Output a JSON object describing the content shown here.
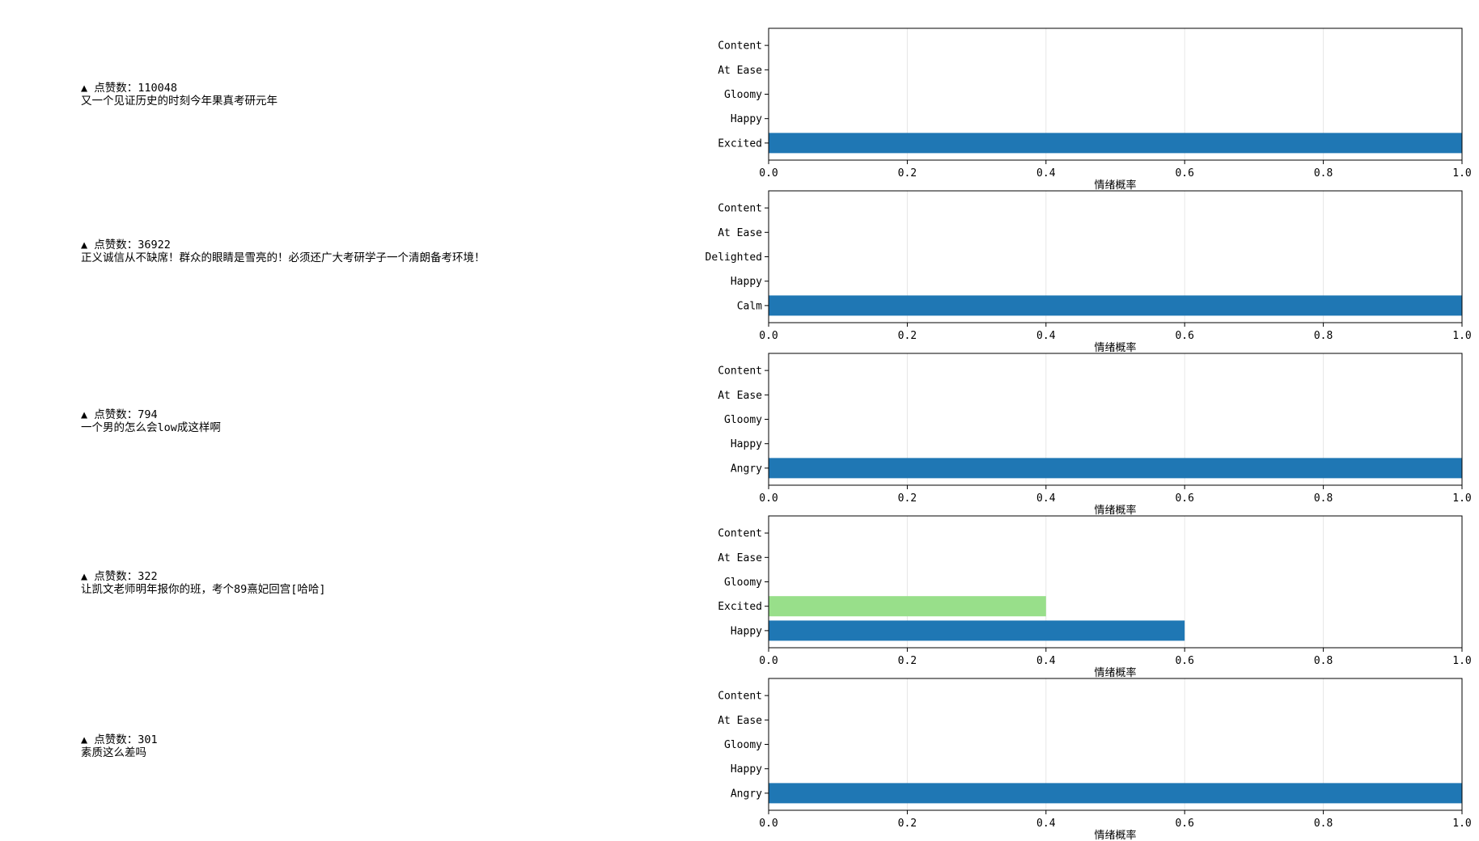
{
  "comments": [
    {
      "likes": "▲ 点赞数：110048",
      "text": "又一个见证历史的时刻今年果真考研元年"
    },
    {
      "likes": "▲ 点赞数：36922",
      "text": "正义诚信从不缺席！群众的眼睛是雪亮的！必须还广大考研学子一个清朗备考环境！"
    },
    {
      "likes": "▲ 点赞数：794",
      "text": "一个男的怎么会low成这样啊"
    },
    {
      "likes": "▲ 点赞数：322",
      "text": "让凯文老师明年报你的班，考个89熹妃回宫[哈哈]"
    },
    {
      "likes": "▲ 点赞数：301",
      "text": "素质这么差吗"
    }
  ],
  "colors": {
    "primary": "#1f77b4",
    "secondary": "#98df8a",
    "grid": "#e6e6e6",
    "axis": "#000000"
  },
  "chart_data": [
    {
      "type": "bar",
      "orientation": "horizontal",
      "categories": [
        "Excited",
        "Happy",
        "Gloomy",
        "At Ease",
        "Content"
      ],
      "values": [
        1.0,
        0,
        0,
        0,
        0
      ],
      "xlabel": "情绪概率",
      "xlim": [
        0,
        1.0
      ],
      "xticks": [
        "0.0",
        "0.2",
        "0.4",
        "0.6",
        "0.8",
        "1.0"
      ],
      "grid": "vertical"
    },
    {
      "type": "bar",
      "orientation": "horizontal",
      "categories": [
        "Calm",
        "Happy",
        "Delighted",
        "At Ease",
        "Content"
      ],
      "values": [
        1.0,
        0,
        0,
        0,
        0
      ],
      "xlabel": "情绪概率",
      "xlim": [
        0,
        1.0
      ],
      "xticks": [
        "0.0",
        "0.2",
        "0.4",
        "0.6",
        "0.8",
        "1.0"
      ],
      "grid": "vertical"
    },
    {
      "type": "bar",
      "orientation": "horizontal",
      "categories": [
        "Angry",
        "Happy",
        "Gloomy",
        "At Ease",
        "Content"
      ],
      "values": [
        1.0,
        0,
        0,
        0,
        0
      ],
      "xlabel": "情绪概率",
      "xlim": [
        0,
        1.0
      ],
      "xticks": [
        "0.0",
        "0.2",
        "0.4",
        "0.6",
        "0.8",
        "1.0"
      ],
      "grid": "vertical"
    },
    {
      "type": "bar",
      "orientation": "horizontal",
      "categories": [
        "Happy",
        "Excited",
        "Gloomy",
        "At Ease",
        "Content"
      ],
      "values": [
        0.6,
        0.4,
        0,
        0,
        0
      ],
      "xlabel": "情绪概率",
      "xlim": [
        0,
        1.0
      ],
      "xticks": [
        "0.0",
        "0.2",
        "0.4",
        "0.6",
        "0.8",
        "1.0"
      ],
      "grid": "vertical"
    },
    {
      "type": "bar",
      "orientation": "horizontal",
      "categories": [
        "Angry",
        "Happy",
        "Gloomy",
        "At Ease",
        "Content"
      ],
      "values": [
        1.0,
        0,
        0,
        0,
        0
      ],
      "xlabel": "情绪概率",
      "xlim": [
        0,
        1.0
      ],
      "xticks": [
        "0.0",
        "0.2",
        "0.4",
        "0.6",
        "0.8",
        "1.0"
      ],
      "grid": "vertical"
    }
  ]
}
